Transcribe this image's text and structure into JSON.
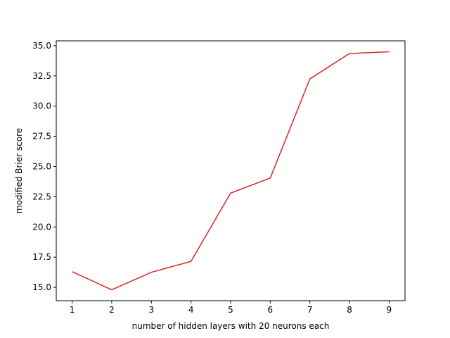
{
  "chart_data": {
    "type": "line",
    "title": "",
    "xlabel": "number of hidden layers with 20 neurons each",
    "ylabel": "modified Brier score",
    "x": [
      1,
      2,
      3,
      4,
      5,
      6,
      7,
      8,
      9
    ],
    "series": [
      {
        "values": [
          16.3,
          14.8,
          16.25,
          17.15,
          22.8,
          24.05,
          32.25,
          34.35,
          34.5
        ],
        "color": "#d62728"
      }
    ],
    "xlim": [
      0.6,
      9.4
    ],
    "ylim": [
      13.9,
      35.4
    ],
    "xticks": [
      "1",
      "2",
      "3",
      "4",
      "5",
      "6",
      "7",
      "8",
      "9"
    ],
    "yticks": [
      "15.0",
      "17.5",
      "20.0",
      "22.5",
      "25.0",
      "27.5",
      "30.0",
      "32.5",
      "35.0"
    ],
    "grid": false,
    "legend": "none"
  }
}
